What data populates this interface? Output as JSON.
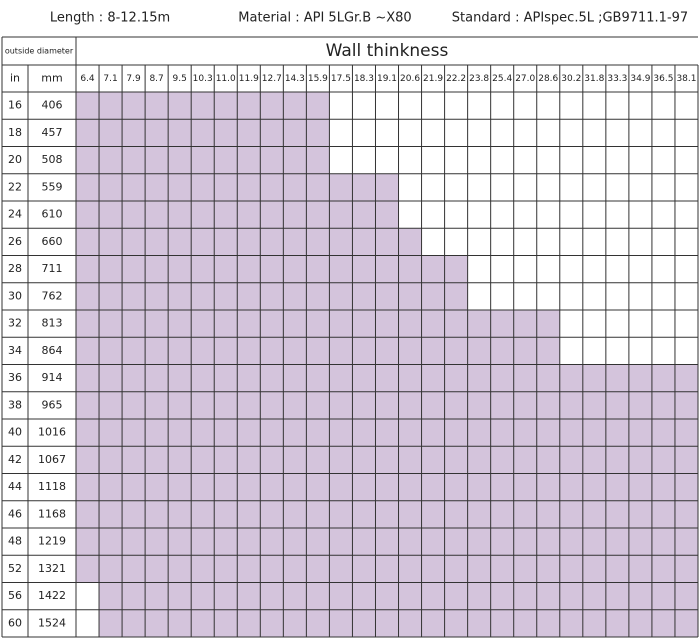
{
  "header": {
    "length": "Length : 8-12.15m",
    "material": "Material : API 5LGr.B ~X80",
    "standard": "Standard : APIspec.5L ;GB9711.1-97"
  },
  "table": {
    "corner_label": "outside diameter",
    "group_title": "Wall thinkness",
    "unit_headers": [
      "in",
      "mm"
    ],
    "columns": [
      "6.4",
      "7.1",
      "7.9",
      "8.7",
      "9.5",
      "10.3",
      "11.0",
      "11.9",
      "12.7",
      "14.3",
      "15.9",
      "17.5",
      "18.3",
      "19.1",
      "20.6",
      "21.9",
      "22.2",
      "23.8",
      "25.4",
      "27.0",
      "28.6",
      "30.2",
      "31.8",
      "33.3",
      "34.9",
      "36.5",
      "38.1"
    ],
    "rows": [
      [
        "16",
        "406"
      ],
      [
        "18",
        "457"
      ],
      [
        "20",
        "508"
      ],
      [
        "22",
        "559"
      ],
      [
        "24",
        "610"
      ],
      [
        "26",
        "660"
      ],
      [
        "28",
        "711"
      ],
      [
        "30",
        "762"
      ],
      [
        "32",
        "813"
      ],
      [
        "34",
        "864"
      ],
      [
        "36",
        "914"
      ],
      [
        "38",
        "965"
      ],
      [
        "40",
        "1016"
      ],
      [
        "42",
        "1067"
      ],
      [
        "44",
        "1118"
      ],
      [
        "46",
        "1168"
      ],
      [
        "48",
        "1219"
      ],
      [
        "52",
        "1321"
      ],
      [
        "56",
        "1422"
      ],
      [
        "60",
        "1524"
      ]
    ]
  }
}
